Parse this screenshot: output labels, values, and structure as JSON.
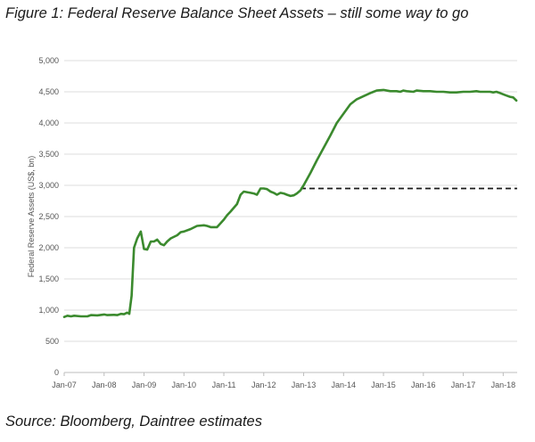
{
  "figure": {
    "title": "Figure 1: Federal Reserve Balance Sheet Assets – still some way to go",
    "source": "Source: Bloomberg, Daintree estimates"
  },
  "colors": {
    "line": "#3b8a2e",
    "projection": "#1a1a1a",
    "grid": "#dcdcdc",
    "axis": "#bdbdbd"
  },
  "chart_data": {
    "type": "line",
    "title": "Figure 1: Federal Reserve Balance Sheet Assets – still some way to go",
    "xlabel": "",
    "ylabel": "Federal Reserve Assets (US$, bn)",
    "ylim": [
      0,
      5000
    ],
    "y_ticks": [
      0,
      500,
      1000,
      1500,
      2000,
      2500,
      3000,
      3500,
      4000,
      4500,
      5000
    ],
    "y_tick_labels": [
      "0",
      "500",
      "1,000",
      "1,500",
      "2,000",
      "2,500",
      "3,000",
      "3,500",
      "4,000",
      "4,500",
      "5,000"
    ],
    "x_range": [
      2007.0,
      2018.35
    ],
    "x_ticks": [
      2007,
      2008,
      2009,
      2010,
      2011,
      2012,
      2013,
      2014,
      2015,
      2016,
      2017,
      2018
    ],
    "x_tick_labels": [
      "Jan-07",
      "Jan-08",
      "Jan-09",
      "Jan-10",
      "Jan-11",
      "Jan-12",
      "Jan-13",
      "Jan-14",
      "Jan-15",
      "Jan-16",
      "Jan-17",
      "Jan-18"
    ],
    "grid": "horizontal",
    "legend": "none",
    "series": [
      {
        "points": [
          [
            2007.0,
            890
          ],
          [
            2007.08,
            910
          ],
          [
            2007.17,
            900
          ],
          [
            2007.25,
            910
          ],
          [
            2007.42,
            900
          ],
          [
            2007.58,
            900
          ],
          [
            2007.67,
            920
          ],
          [
            2007.83,
            915
          ],
          [
            2008.0,
            930
          ],
          [
            2008.08,
            920
          ],
          [
            2008.25,
            925
          ],
          [
            2008.33,
            920
          ],
          [
            2008.42,
            940
          ],
          [
            2008.5,
            935
          ],
          [
            2008.58,
            960
          ],
          [
            2008.63,
            940
          ],
          [
            2008.69,
            1230
          ],
          [
            2008.75,
            2000
          ],
          [
            2008.83,
            2150
          ],
          [
            2008.92,
            2260
          ],
          [
            2009.0,
            1980
          ],
          [
            2009.08,
            1970
          ],
          [
            2009.17,
            2100
          ],
          [
            2009.25,
            2100
          ],
          [
            2009.33,
            2130
          ],
          [
            2009.42,
            2060
          ],
          [
            2009.5,
            2040
          ],
          [
            2009.58,
            2100
          ],
          [
            2009.67,
            2150
          ],
          [
            2009.83,
            2200
          ],
          [
            2009.92,
            2250
          ],
          [
            2010.0,
            2260
          ],
          [
            2010.17,
            2300
          ],
          [
            2010.33,
            2350
          ],
          [
            2010.5,
            2360
          ],
          [
            2010.58,
            2350
          ],
          [
            2010.67,
            2330
          ],
          [
            2010.83,
            2330
          ],
          [
            2011.0,
            2450
          ],
          [
            2011.08,
            2520
          ],
          [
            2011.17,
            2580
          ],
          [
            2011.33,
            2700
          ],
          [
            2011.42,
            2850
          ],
          [
            2011.5,
            2900
          ],
          [
            2011.67,
            2880
          ],
          [
            2011.75,
            2870
          ],
          [
            2011.83,
            2850
          ],
          [
            2011.92,
            2950
          ],
          [
            2012.0,
            2950
          ],
          [
            2012.08,
            2940
          ],
          [
            2012.17,
            2900
          ],
          [
            2012.25,
            2880
          ],
          [
            2012.33,
            2850
          ],
          [
            2012.42,
            2880
          ],
          [
            2012.5,
            2870
          ],
          [
            2012.58,
            2850
          ],
          [
            2012.67,
            2830
          ],
          [
            2012.75,
            2840
          ],
          [
            2012.83,
            2870
          ],
          [
            2012.92,
            2920
          ],
          [
            2013.0,
            3000
          ],
          [
            2013.17,
            3200
          ],
          [
            2013.33,
            3400
          ],
          [
            2013.5,
            3600
          ],
          [
            2013.67,
            3800
          ],
          [
            2013.83,
            4000
          ],
          [
            2014.0,
            4150
          ],
          [
            2014.17,
            4300
          ],
          [
            2014.33,
            4380
          ],
          [
            2014.5,
            4430
          ],
          [
            2014.67,
            4480
          ],
          [
            2014.75,
            4500
          ],
          [
            2014.83,
            4520
          ],
          [
            2015.0,
            4530
          ],
          [
            2015.17,
            4510
          ],
          [
            2015.33,
            4510
          ],
          [
            2015.42,
            4500
          ],
          [
            2015.5,
            4520
          ],
          [
            2015.58,
            4510
          ],
          [
            2015.75,
            4500
          ],
          [
            2015.83,
            4520
          ],
          [
            2016.0,
            4510
          ],
          [
            2016.17,
            4510
          ],
          [
            2016.33,
            4500
          ],
          [
            2016.5,
            4500
          ],
          [
            2016.67,
            4490
          ],
          [
            2016.83,
            4490
          ],
          [
            2017.0,
            4500
          ],
          [
            2017.17,
            4500
          ],
          [
            2017.33,
            4510
          ],
          [
            2017.42,
            4500
          ],
          [
            2017.5,
            4500
          ],
          [
            2017.67,
            4500
          ],
          [
            2017.75,
            4490
          ],
          [
            2017.83,
            4500
          ],
          [
            2017.92,
            4480
          ],
          [
            2018.0,
            4460
          ],
          [
            2018.08,
            4440
          ],
          [
            2018.17,
            4420
          ],
          [
            2018.25,
            4410
          ],
          [
            2018.33,
            4360
          ]
        ]
      }
    ],
    "projection": {
      "style": "dashed",
      "value": 2950,
      "x_start": 2012.92,
      "x_end": 2018.35
    }
  }
}
